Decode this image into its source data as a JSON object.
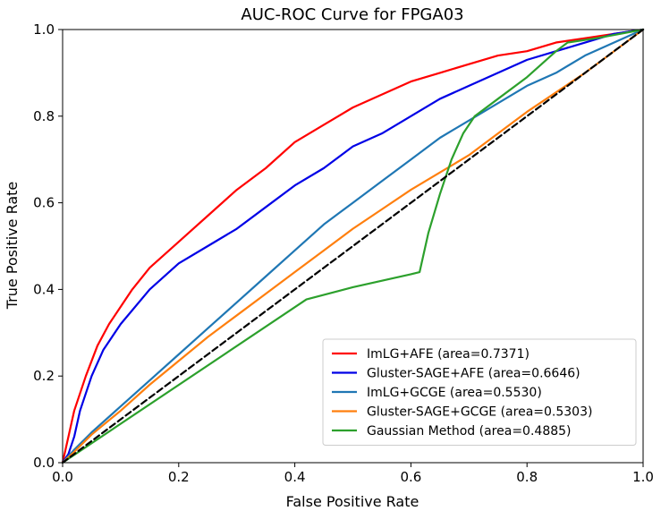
{
  "chart_data": {
    "type": "line",
    "title": "AUC-ROC Curve for FPGA03",
    "xlabel": "False Positive Rate",
    "ylabel": "True Positive Rate",
    "xlim": [
      0.0,
      1.0
    ],
    "ylim": [
      0.0,
      1.0
    ],
    "xticks": [
      0.0,
      0.2,
      0.4,
      0.6,
      0.8,
      1.0
    ],
    "yticks": [
      0.0,
      0.2,
      0.4,
      0.6,
      0.8,
      1.0
    ],
    "xtick_labels": [
      "0.0",
      "0.2",
      "0.4",
      "0.6",
      "0.8",
      "1.0"
    ],
    "ytick_labels": [
      "0.0",
      "0.2",
      "0.4",
      "0.6",
      "0.8",
      "1.0"
    ],
    "grid": false,
    "legend_position": "lower-right",
    "series": [
      {
        "name": "ImLG+AFE (area=0.7371)",
        "color": "#ff0000",
        "x": [
          0.0,
          0.01,
          0.02,
          0.04,
          0.06,
          0.08,
          0.1,
          0.12,
          0.15,
          0.2,
          0.25,
          0.3,
          0.35,
          0.4,
          0.45,
          0.5,
          0.55,
          0.6,
          0.65,
          0.7,
          0.75,
          0.8,
          0.85,
          0.9,
          0.95,
          1.0
        ],
        "y": [
          0.0,
          0.06,
          0.12,
          0.2,
          0.27,
          0.32,
          0.36,
          0.4,
          0.45,
          0.51,
          0.57,
          0.63,
          0.68,
          0.74,
          0.78,
          0.82,
          0.85,
          0.88,
          0.9,
          0.92,
          0.94,
          0.95,
          0.97,
          0.98,
          0.99,
          1.0
        ]
      },
      {
        "name": "Gluster-SAGE+AFE (area=0.6646)",
        "color": "#0000e6",
        "x": [
          0.0,
          0.01,
          0.02,
          0.03,
          0.05,
          0.07,
          0.1,
          0.15,
          0.2,
          0.25,
          0.3,
          0.35,
          0.4,
          0.45,
          0.5,
          0.55,
          0.6,
          0.65,
          0.7,
          0.75,
          0.8,
          0.85,
          0.9,
          0.95,
          1.0
        ],
        "y": [
          0.0,
          0.02,
          0.06,
          0.12,
          0.2,
          0.26,
          0.32,
          0.4,
          0.46,
          0.5,
          0.54,
          0.59,
          0.64,
          0.68,
          0.73,
          0.76,
          0.8,
          0.84,
          0.87,
          0.9,
          0.93,
          0.95,
          0.97,
          0.99,
          1.0
        ]
      },
      {
        "name": "ImLG+GCGE (area=0.5530)",
        "color": "#1f77b4",
        "x": [
          0.0,
          0.02,
          0.05,
          0.1,
          0.15,
          0.2,
          0.25,
          0.3,
          0.35,
          0.4,
          0.45,
          0.5,
          0.55,
          0.6,
          0.65,
          0.7,
          0.75,
          0.8,
          0.85,
          0.9,
          0.95,
          1.0
        ],
        "y": [
          0.0,
          0.03,
          0.07,
          0.13,
          0.19,
          0.25,
          0.31,
          0.37,
          0.43,
          0.49,
          0.55,
          0.6,
          0.65,
          0.7,
          0.75,
          0.79,
          0.83,
          0.87,
          0.9,
          0.94,
          0.97,
          1.0
        ]
      },
      {
        "name": "Gluster-SAGE+GCGE (area=0.5303)",
        "color": "#ff7f0e",
        "x": [
          0.0,
          0.02,
          0.05,
          0.1,
          0.15,
          0.2,
          0.25,
          0.3,
          0.35,
          0.4,
          0.45,
          0.5,
          0.55,
          0.6,
          0.65,
          0.7,
          0.75,
          0.8,
          0.85,
          0.9,
          0.95,
          1.0
        ],
        "y": [
          0.0,
          0.025,
          0.065,
          0.12,
          0.18,
          0.235,
          0.29,
          0.34,
          0.39,
          0.44,
          0.49,
          0.54,
          0.585,
          0.63,
          0.67,
          0.71,
          0.76,
          0.81,
          0.855,
          0.9,
          0.95,
          1.0
        ]
      },
      {
        "name": "Gaussian Method (area=0.4885)",
        "color": "#2ca02c",
        "x": [
          0.0,
          0.42,
          0.5,
          0.55,
          0.6,
          0.615,
          0.63,
          0.65,
          0.67,
          0.69,
          0.71,
          0.75,
          0.8,
          0.85,
          0.87,
          0.92,
          1.0
        ],
        "y": [
          0.0,
          0.377,
          0.405,
          0.42,
          0.435,
          0.44,
          0.53,
          0.62,
          0.7,
          0.76,
          0.8,
          0.84,
          0.89,
          0.95,
          0.97,
          0.98,
          1.0
        ]
      },
      {
        "name": "",
        "color": "#000000",
        "dashed": true,
        "x": [
          0.0,
          1.0
        ],
        "y": [
          0.0,
          1.0
        ]
      }
    ]
  }
}
